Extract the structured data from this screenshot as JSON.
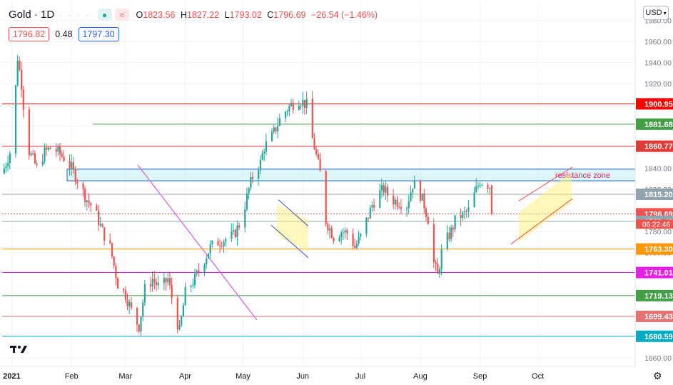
{
  "header": {
    "symbol": "Gold · 1D",
    "ohlc_o_label": "O",
    "ohlc_o": "1823.56",
    "ohlc_h_label": "H",
    "ohlc_h": "1827.22",
    "ohlc_l_label": "L",
    "ohlc_l": "1793.02",
    "ohlc_c_label": "C",
    "ohlc_c": "1796.69",
    "change": "−26.54 (−1.46%)"
  },
  "prices": {
    "bid": "1796.82",
    "spread": "0.48",
    "ask": "1797.30"
  },
  "currency_label": "USD",
  "colors": {
    "up": "#26a69a",
    "down": "#ef5350",
    "accent": "#2962ff"
  },
  "chart_data": {
    "type": "candlestick",
    "title": "",
    "ylim": [
      1652,
      1996
    ],
    "y_ticks": [
      1660,
      1680,
      1700,
      1720,
      1740,
      1760,
      1780,
      1800,
      1820,
      1840,
      1860,
      1880,
      1900,
      1920,
      1940,
      1960,
      1980
    ],
    "x_ticks": [
      {
        "label": "2021",
        "day": 5
      },
      {
        "label": "Feb",
        "day": 36
      },
      {
        "label": "Mar",
        "day": 64
      },
      {
        "label": "Apr",
        "day": 95
      },
      {
        "label": "May",
        "day": 125
      },
      {
        "label": "Jun",
        "day": 156
      },
      {
        "label": "Jul",
        "day": 186
      },
      {
        "label": "Aug",
        "day": 217
      },
      {
        "label": "Sep",
        "day": 248
      },
      {
        "label": "Oct",
        "day": 278
      }
    ],
    "price_path": [
      [
        0,
        1835
      ],
      [
        5,
        1860
      ],
      [
        8,
        1945
      ],
      [
        10,
        1920
      ],
      [
        13,
        1860
      ],
      [
        18,
        1840
      ],
      [
        22,
        1855
      ],
      [
        26,
        1860
      ],
      [
        32,
        1850
      ],
      [
        36,
        1840
      ],
      [
        40,
        1825
      ],
      [
        44,
        1810
      ],
      [
        48,
        1800
      ],
      [
        52,
        1780
      ],
      [
        56,
        1765
      ],
      [
        60,
        1730
      ],
      [
        64,
        1720
      ],
      [
        68,
        1700
      ],
      [
        71,
        1690
      ],
      [
        74,
        1725
      ],
      [
        78,
        1735
      ],
      [
        82,
        1725
      ],
      [
        86,
        1735
      ],
      [
        90,
        1700
      ],
      [
        92,
        1685
      ],
      [
        95,
        1722
      ],
      [
        100,
        1735
      ],
      [
        104,
        1750
      ],
      [
        108,
        1765
      ],
      [
        112,
        1770
      ],
      [
        116,
        1773
      ],
      [
        120,
        1776
      ],
      [
        124,
        1790
      ],
      [
        128,
        1820
      ],
      [
        131,
        1838
      ],
      [
        134,
        1845
      ],
      [
        136,
        1860
      ],
      [
        140,
        1870
      ],
      [
        145,
        1890
      ],
      [
        150,
        1900
      ],
      [
        154,
        1905
      ],
      [
        158,
        1900
      ],
      [
        160,
        1875
      ],
      [
        162,
        1860
      ],
      [
        165,
        1835
      ],
      [
        168,
        1790
      ],
      [
        172,
        1775
      ],
      [
        176,
        1780
      ],
      [
        180,
        1778
      ],
      [
        183,
        1765
      ],
      [
        186,
        1775
      ],
      [
        189,
        1790
      ],
      [
        192,
        1805
      ],
      [
        195,
        1815
      ],
      [
        198,
        1820
      ],
      [
        202,
        1810
      ],
      [
        206,
        1808
      ],
      [
        210,
        1805
      ],
      [
        213,
        1825
      ],
      [
        216,
        1820
      ],
      [
        219,
        1805
      ],
      [
        222,
        1785
      ],
      [
        224,
        1750
      ],
      [
        226,
        1738
      ],
      [
        228,
        1760
      ],
      [
        230,
        1770
      ],
      [
        233,
        1780
      ],
      [
        236,
        1795
      ],
      [
        239,
        1795
      ],
      [
        242,
        1800
      ],
      [
        245,
        1815
      ],
      [
        248,
        1828
      ],
      [
        251,
        1826
      ],
      [
        253,
        1823
      ],
      [
        254,
        1796.69
      ]
    ],
    "horizontal_levels": [
      {
        "value": 1900.95,
        "label": "1900.95",
        "color": "#ff0000"
      },
      {
        "value": 1881.68,
        "label": "1881.68",
        "color": "#43a047"
      },
      {
        "value": 1860.77,
        "label": "1860.77",
        "color": "#e53935"
      },
      {
        "value": 1815.2,
        "label": "1815.20",
        "color": "#90a4ae"
      },
      {
        "value": 1796.69,
        "label": "1796.69",
        "color": "#ef5350"
      },
      {
        "value": 1789.49,
        "label": "1789.49",
        "color": "#90a4ae"
      },
      {
        "value": 1763.3,
        "label": "1763.30",
        "color": "#ff9800"
      },
      {
        "value": 1741.01,
        "label": "1741.01",
        "color": "#e91ee6"
      },
      {
        "value": 1719.13,
        "label": "1719.13",
        "color": "#43a047"
      },
      {
        "value": 1699.43,
        "label": "1699.43",
        "color": "#e57373"
      },
      {
        "value": 1680.59,
        "label": "1680.59",
        "color": "#00acc1"
      }
    ],
    "countdown": "06:22:46",
    "resistance_zone": {
      "label": "resistance zone",
      "low": 1828,
      "high": 1839
    }
  }
}
